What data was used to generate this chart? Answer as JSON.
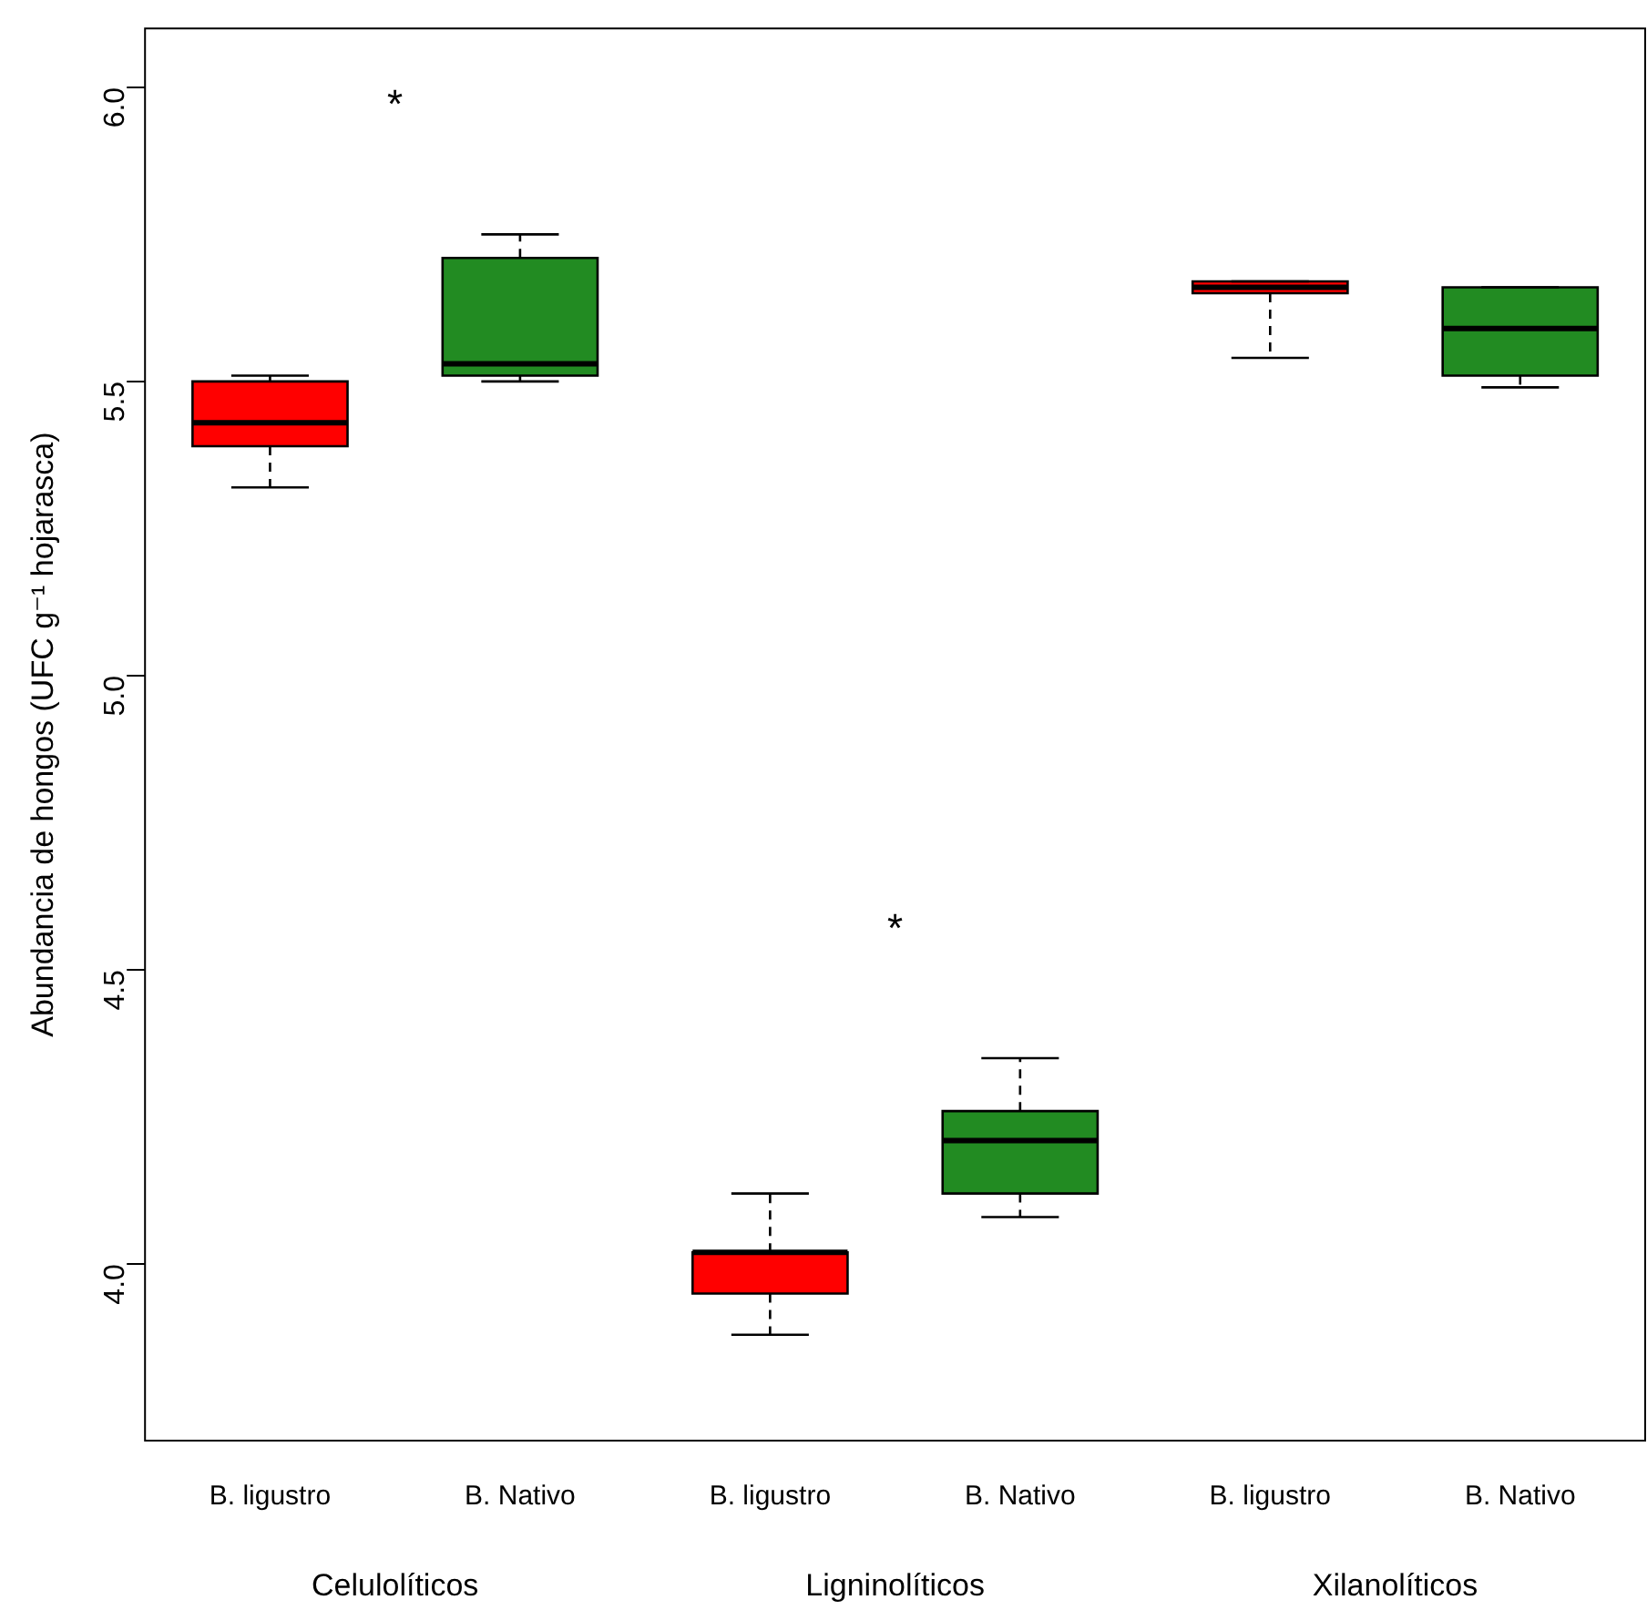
{
  "chart_data": {
    "type": "box",
    "ylabel": "Abundancia de hongos (UFC g⁻¹ hojarasca)",
    "categories": [
      "B. ligustro",
      "B. Nativo",
      "B. ligustro",
      "B. Nativo",
      "B. ligustro",
      "B. Nativo"
    ],
    "colors": [
      "#ff0000",
      "#228b22",
      "#ff0000",
      "#228b22",
      "#ff0000",
      "#228b22"
    ],
    "boxes": [
      {
        "low": 5.32,
        "q1": 5.39,
        "median": 5.43,
        "q3": 5.5,
        "high": 5.51
      },
      {
        "low": 5.5,
        "q1": 5.51,
        "median": 5.53,
        "q3": 5.71,
        "high": 5.75
      },
      {
        "low": 3.88,
        "q1": 3.95,
        "median": 4.02,
        "q3": 4.02,
        "high": 4.12
      },
      {
        "low": 4.08,
        "q1": 4.12,
        "median": 4.21,
        "q3": 4.26,
        "high": 4.35
      },
      {
        "low": 5.54,
        "q1": 5.65,
        "median": 5.66,
        "q3": 5.67,
        "high": 5.67
      },
      {
        "low": 5.49,
        "q1": 5.51,
        "median": 5.59,
        "q3": 5.66,
        "high": 5.66
      }
    ],
    "ylim": [
      3.7,
      6.1
    ],
    "yticks": [
      {
        "value": 4,
        "label": "4.0"
      },
      {
        "value": 4.5,
        "label": "4.5"
      },
      {
        "value": 5,
        "label": "5.0"
      },
      {
        "value": 5.5,
        "label": "5.5"
      },
      {
        "value": 6,
        "label": "6.0"
      }
    ],
    "annotations": [
      "*",
      "*",
      "Celulolíticos",
      "Ligninolíticos",
      "Xilanolíticos"
    ],
    "grid": false,
    "legend": false
  }
}
